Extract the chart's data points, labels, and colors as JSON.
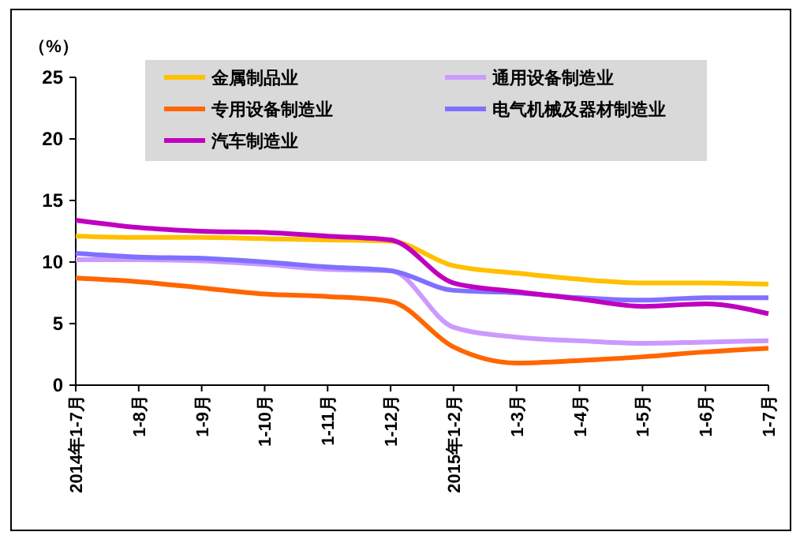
{
  "chart_data": {
    "type": "line",
    "ylabel": "（%）",
    "categories": [
      "2014年1-7月",
      "1-8月",
      "1-9月",
      "1-10月",
      "1-11月",
      "1-12月",
      "2015年1-2月",
      "1-3月",
      "1-4月",
      "1-5月",
      "1-6月",
      "1-7月"
    ],
    "series": [
      {
        "name": "金属制品业",
        "color": "#ffc000",
        "values": [
          12.1,
          12.0,
          12.0,
          11.9,
          11.8,
          11.7,
          9.7,
          9.1,
          8.6,
          8.3,
          8.3,
          8.2
        ]
      },
      {
        "name": "通用设备制造业",
        "color": "#cc99ff",
        "values": [
          10.2,
          10.2,
          10.1,
          9.8,
          9.4,
          9.3,
          4.7,
          3.9,
          3.6,
          3.4,
          3.5,
          3.6
        ]
      },
      {
        "name": "专用设备制造业",
        "color": "#ff6600",
        "values": [
          8.7,
          8.4,
          7.9,
          7.4,
          7.2,
          6.8,
          3.1,
          1.8,
          2.0,
          2.3,
          2.7,
          3.0
        ]
      },
      {
        "name": "电气机械及器材制造业",
        "color": "#8070ff",
        "values": [
          10.7,
          10.4,
          10.3,
          10.0,
          9.6,
          9.3,
          7.7,
          7.5,
          7.1,
          6.9,
          7.1,
          7.1
        ]
      },
      {
        "name": "汽车制造业",
        "color": "#c000c0",
        "values": [
          13.4,
          12.8,
          12.5,
          12.4,
          12.1,
          11.8,
          8.3,
          7.6,
          7.0,
          6.4,
          6.6,
          5.8
        ]
      }
    ],
    "ylim": [
      0,
      25
    ],
    "yticks": [
      0,
      5,
      10,
      15,
      20,
      25
    ],
    "grid": false,
    "legend": "top",
    "marker": "none",
    "line_style": "solid"
  }
}
